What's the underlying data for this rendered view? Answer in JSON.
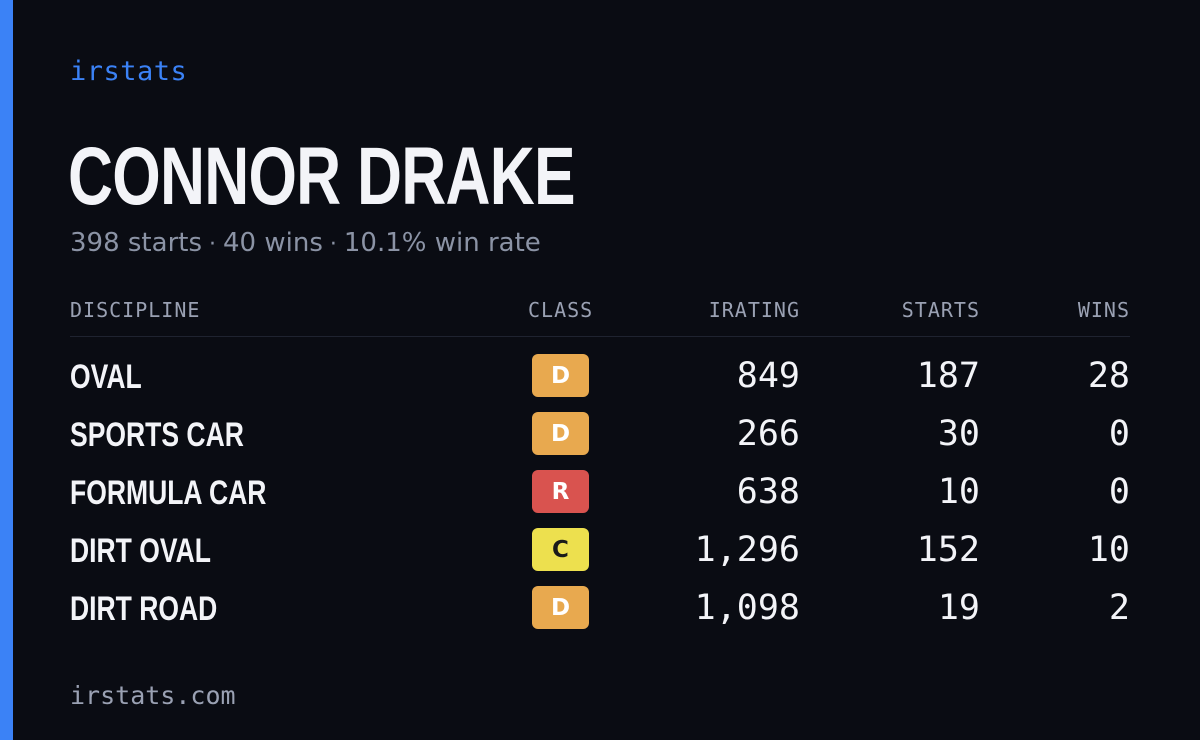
{
  "brand": "irstats",
  "driver": {
    "name": "CONNOR DRAKE",
    "starts_text": "398 starts",
    "wins_text": "40 wins",
    "winrate_text": "10.1% win rate",
    "separator": "·"
  },
  "table": {
    "headers": {
      "discipline": "DISCIPLINE",
      "class": "CLASS",
      "irating": "IRATING",
      "starts": "STARTS",
      "wins": "WINS"
    },
    "rows": [
      {
        "discipline": "OVAL",
        "class": "D",
        "class_color": "#e8a94f",
        "irating": "849",
        "starts": "187",
        "wins": "28"
      },
      {
        "discipline": "SPORTS CAR",
        "class": "D",
        "class_color": "#e8a94f",
        "irating": "266",
        "starts": "30",
        "wins": "0"
      },
      {
        "discipline": "FORMULA CAR",
        "class": "R",
        "class_color": "#d9534f",
        "irating": "638",
        "starts": "10",
        "wins": "0"
      },
      {
        "discipline": "DIRT OVAL",
        "class": "C",
        "class_color": "#ede04e",
        "class_text_color": "#1a1a1a",
        "irating": "1,296",
        "starts": "152",
        "wins": "10"
      },
      {
        "discipline": "DIRT ROAD",
        "class": "D",
        "class_color": "#e8a94f",
        "irating": "1,098",
        "starts": "19",
        "wins": "2"
      }
    ]
  },
  "footer": "irstats.com",
  "colors": {
    "accent": "#3b82f6",
    "background": "#0a0c13",
    "text": "#f3f4f8",
    "muted": "#8b93a5"
  }
}
